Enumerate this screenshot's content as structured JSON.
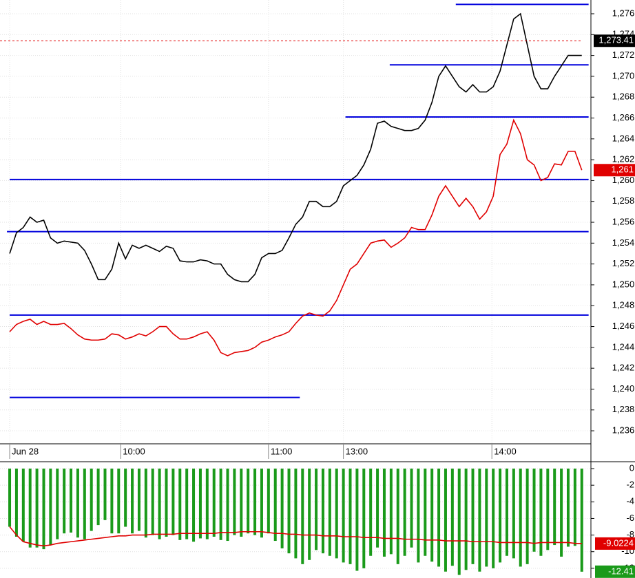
{
  "chart_data": [
    {
      "type": "line",
      "xlim": [
        -1.42,
        85.34
      ],
      "ylim": [
        1234.75,
        1277.32
      ],
      "grid": true,
      "xticks": [
        {
          "value": 0,
          "label": "Jun 28"
        },
        {
          "value": 16.3,
          "label": "10:00"
        },
        {
          "value": 38,
          "label": "11:00"
        },
        {
          "value": 49,
          "label": "13:00"
        },
        {
          "value": 70.8,
          "label": "14:00"
        }
      ],
      "yticks": [
        {
          "value": 1236,
          "label": "1,236"
        },
        {
          "value": 1238,
          "label": "1,238"
        },
        {
          "value": 1240,
          "label": "1,240"
        },
        {
          "value": 1242,
          "label": "1,242"
        },
        {
          "value": 1244,
          "label": "1,244"
        },
        {
          "value": 1246,
          "label": "1,246"
        },
        {
          "value": 1248,
          "label": "1,248"
        },
        {
          "value": 1250,
          "label": "1,250"
        },
        {
          "value": 1252,
          "label": "1,252"
        },
        {
          "value": 1254,
          "label": "1,254"
        },
        {
          "value": 1256,
          "label": "1,256"
        },
        {
          "value": 1258,
          "label": "1,258"
        },
        {
          "value": 1260,
          "label": "1,260"
        },
        {
          "value": 1262,
          "label": "1,262"
        },
        {
          "value": 1264,
          "label": "1,264"
        },
        {
          "value": 1266,
          "label": "1,266"
        },
        {
          "value": 1268,
          "label": "1,268"
        },
        {
          "value": 1270,
          "label": "1,270"
        },
        {
          "value": 1272,
          "label": "1,272"
        },
        {
          "value": 1274,
          "label": "1,274"
        },
        {
          "value": 1276,
          "label": "1,276"
        }
      ],
      "series": [
        {
          "color": "#000000",
          "values": [
            1253.0,
            1255.0,
            1255.5,
            1256.5,
            1256.0,
            1256.2,
            1254.5,
            1254.0,
            1254.2,
            1254.1,
            1254.0,
            1253.3,
            1252.0,
            1250.5,
            1250.5,
            1251.5,
            1254.0,
            1252.5,
            1253.8,
            1253.5,
            1253.8,
            1253.5,
            1253.2,
            1253.7,
            1253.5,
            1252.3,
            1252.2,
            1252.2,
            1252.4,
            1252.3,
            1252.0,
            1252.0,
            1251.0,
            1250.5,
            1250.3,
            1250.3,
            1251.0,
            1252.6,
            1253.0,
            1253.0,
            1253.3,
            1254.5,
            1255.8,
            1256.5,
            1258.0,
            1258.0,
            1257.5,
            1257.5,
            1258.0,
            1259.5,
            1260.0,
            1260.5,
            1261.5,
            1263.0,
            1265.5,
            1265.7,
            1265.2,
            1265.0,
            1264.8,
            1264.8,
            1265.0,
            1265.8,
            1267.5,
            1270.0,
            1271.0,
            1270.0,
            1269.0,
            1268.5,
            1269.2,
            1268.5,
            1268.5,
            1269.0,
            1270.5,
            1273.0,
            1275.5,
            1276.0,
            1273.0,
            1270.0,
            1268.8,
            1268.8,
            1270.0,
            1271.0,
            1272.0,
            1272.0,
            1272.0
          ]
        },
        {
          "color": "#e00000",
          "values": [
            1245.5,
            1246.2,
            1246.5,
            1246.7,
            1246.2,
            1246.5,
            1246.2,
            1246.2,
            1246.3,
            1245.8,
            1245.2,
            1244.8,
            1244.7,
            1244.7,
            1244.8,
            1245.3,
            1245.2,
            1244.8,
            1245.0,
            1245.3,
            1245.1,
            1245.5,
            1246.0,
            1246.0,
            1245.3,
            1244.8,
            1244.8,
            1245.0,
            1245.3,
            1245.5,
            1244.7,
            1243.5,
            1243.2,
            1243.5,
            1243.6,
            1243.7,
            1244.0,
            1244.5,
            1244.7,
            1245.0,
            1245.2,
            1245.5,
            1246.3,
            1247.0,
            1247.3,
            1247.1,
            1247.0,
            1247.5,
            1248.5,
            1250.0,
            1251.5,
            1252.0,
            1253.0,
            1254.0,
            1254.2,
            1254.3,
            1253.6,
            1254.0,
            1254.5,
            1255.5,
            1255.3,
            1255.3,
            1256.7,
            1258.5,
            1259.5,
            1258.5,
            1257.5,
            1258.3,
            1257.5,
            1256.3,
            1257.0,
            1258.5,
            1262.5,
            1263.5,
            1265.8,
            1264.5,
            1262.0,
            1261.5,
            1260.0,
            1260.3,
            1261.6,
            1261.5,
            1262.8,
            1262.8,
            1261.0
          ]
        }
      ],
      "level_color": "#0000dd",
      "levels": [
        {
          "value": 1239.2,
          "from": 0,
          "to": 42.6
        },
        {
          "value": 1247.1,
          "from": 0,
          "to": 85
        },
        {
          "value": 1255.1,
          "from": -0.4,
          "to": 85
        },
        {
          "value": 1260.1,
          "from": 0,
          "to": 85
        },
        {
          "value": 1266.1,
          "from": 49.3,
          "to": 85
        },
        {
          "value": 1271.1,
          "from": 55.8,
          "to": 85
        },
        {
          "value": 1276.9,
          "from": 65.5,
          "to": 85
        }
      ],
      "markers": [
        {
          "value": 1273.41,
          "label": "1,273.41",
          "color": "#000000",
          "dashed": true
        },
        {
          "value": 1261,
          "label": "1,261",
          "color": "#e00000",
          "dashed": false
        }
      ]
    },
    {
      "type": "bar",
      "xlim": [
        -1.42,
        85.34
      ],
      "ylim": [
        -13.17,
        0.83
      ],
      "grid": true,
      "yticks": [
        0,
        -2,
        -4,
        -6,
        -8,
        -10,
        -12
      ],
      "series": [
        {
          "type": "bar",
          "color": "#1a9a1a",
          "values": [
            -7.0,
            -8.2,
            -8.8,
            -9.5,
            -9.5,
            -9.7,
            -9.2,
            -8.5,
            -7.8,
            -7.7,
            -8.3,
            -8.5,
            -7.5,
            -6.8,
            -6.2,
            -7.8,
            -7.8,
            -7.0,
            -7.8,
            -7.5,
            -8.3,
            -8.0,
            -8.5,
            -8.2,
            -8.0,
            -8.6,
            -8.5,
            -8.8,
            -8.4,
            -8.5,
            -8.2,
            -8.6,
            -8.7,
            -8.0,
            -8.2,
            -7.8,
            -8.0,
            -8.3,
            -7.8,
            -8.7,
            -9.6,
            -10.2,
            -10.8,
            -11.5,
            -11.0,
            -9.8,
            -10.2,
            -10.5,
            -10.8,
            -11.3,
            -11.5,
            -12.3,
            -12.0,
            -10.5,
            -9.5,
            -10.6,
            -10.3,
            -11.5,
            -10.5,
            -9.5,
            -11.3,
            -10.5,
            -11.2,
            -11.8,
            -12.4,
            -11.7,
            -12.8,
            -12.2,
            -11.5,
            -12.4,
            -11.8,
            -12.0,
            -11.3,
            -10.5,
            -10.8,
            -11.8,
            -11.5,
            -10.0,
            -10.5,
            -9.8,
            -9.2,
            -10.6,
            -9.4,
            -9.3,
            -12.41
          ]
        },
        {
          "type": "line",
          "color": "#e00000",
          "values": [
            -7.0,
            -8.0,
            -8.8,
            -9.0,
            -9.2,
            -9.3,
            -9.2,
            -9.0,
            -8.9,
            -8.8,
            -8.7,
            -8.6,
            -8.5,
            -8.4,
            -8.3,
            -8.2,
            -8.1,
            -8.1,
            -8.0,
            -8.0,
            -8.0,
            -7.9,
            -7.9,
            -7.9,
            -7.9,
            -7.8,
            -7.8,
            -7.8,
            -7.8,
            -7.8,
            -7.8,
            -7.7,
            -7.7,
            -7.7,
            -7.6,
            -7.6,
            -7.6,
            -7.6,
            -7.7,
            -7.8,
            -7.8,
            -7.9,
            -7.9,
            -8.0,
            -8.0,
            -8.0,
            -8.1,
            -8.1,
            -8.1,
            -8.2,
            -8.2,
            -8.2,
            -8.3,
            -8.3,
            -8.3,
            -8.4,
            -8.4,
            -8.4,
            -8.5,
            -8.5,
            -8.5,
            -8.6,
            -8.6,
            -8.6,
            -8.7,
            -8.7,
            -8.7,
            -8.7,
            -8.8,
            -8.8,
            -8.8,
            -8.8,
            -8.9,
            -8.9,
            -8.9,
            -8.9,
            -8.9,
            -9.0,
            -8.9,
            -8.9,
            -8.9,
            -8.9,
            -8.9,
            -9.0,
            -9.0224
          ]
        }
      ]
    }
  ]
}
